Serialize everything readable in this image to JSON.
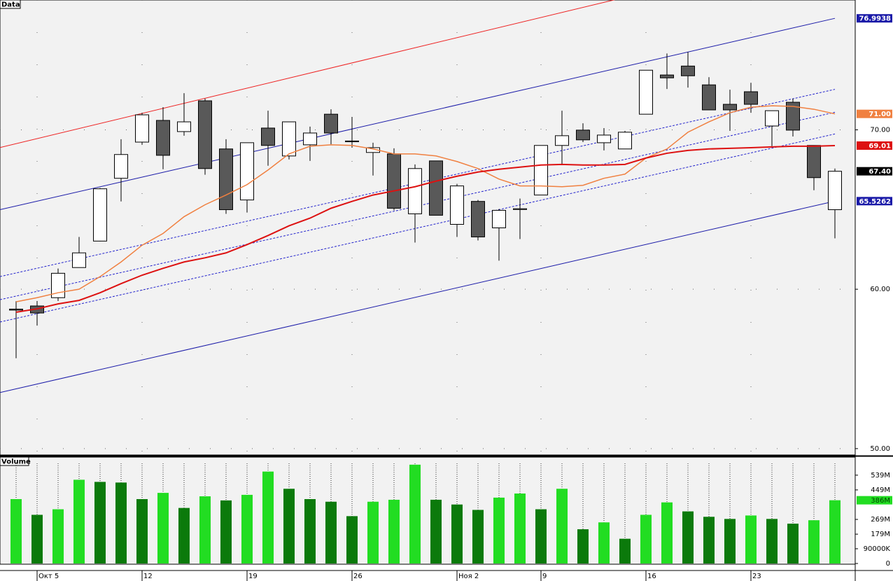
{
  "chart_data": [
    {
      "type": "candlestick",
      "title": "Data",
      "categories": [
        null,
        "Окт 5",
        null,
        null,
        null,
        null,
        "12",
        null,
        null,
        null,
        null,
        "19",
        null,
        null,
        null,
        null,
        "26",
        null,
        null,
        null,
        null,
        "Ноя 2",
        null,
        null,
        null,
        "9",
        null,
        null,
        null,
        null,
        "16",
        null,
        null,
        null,
        null,
        "23",
        null,
        null,
        null,
        null
      ],
      "open": [
        58.75,
        58.95,
        59.47,
        61.36,
        63.02,
        66.96,
        69.23,
        70.59,
        69.89,
        71.82,
        68.8,
        65.6,
        70.11,
        68.36,
        69.06,
        70.98,
        69.3,
        68.58,
        68.49,
        64.73,
        68.05,
        64.07,
        65.51,
        63.85,
        65.0,
        65.91,
        69.02,
        69.98,
        69.19,
        68.8,
        70.98,
        73.44,
        74.0,
        72.82,
        71.6,
        72.39,
        70.24,
        71.73,
        69.02,
        64.99
      ],
      "high": [
        59.25,
        59.26,
        61.3,
        63.28,
        66.35,
        69.41,
        71.07,
        71.42,
        72.3,
        71.95,
        69.41,
        69.19,
        71.2,
        70.5,
        70.2,
        71.29,
        70.81,
        69.19,
        68.84,
        67.83,
        68.05,
        66.61,
        65.6,
        65.03,
        65.69,
        69.02,
        71.2,
        70.41,
        70.11,
        69.93,
        73.74,
        74.79,
        74.88,
        73.3,
        72.52,
        72.95,
        71.2,
        71.95,
        69.02,
        67.57
      ],
      "low": [
        55.67,
        57.72,
        59.26,
        61.36,
        63.0,
        65.51,
        69.06,
        67.53,
        69.63,
        67.18,
        64.73,
        64.81,
        67.75,
        68.14,
        68.05,
        69.1,
        68.88,
        67.13,
        64.95,
        62.93,
        64.64,
        63.28,
        63.06,
        61.79,
        63.15,
        65.91,
        67.79,
        69.23,
        68.71,
        68.8,
        70.98,
        72.56,
        72.65,
        71.25,
        69.93,
        71.07,
        68.97,
        69.58,
        66.21,
        63.19
      ],
      "close": [
        58.69,
        58.51,
        61.0,
        62.28,
        66.3,
        68.45,
        70.94,
        68.4,
        70.5,
        67.57,
        64.99,
        69.19,
        69.02,
        70.5,
        69.8,
        69.8,
        69.25,
        68.88,
        65.08,
        67.57,
        64.64,
        66.48,
        63.28,
        64.95,
        65.05,
        69.02,
        69.63,
        69.37,
        69.67,
        69.85,
        73.74,
        73.26,
        73.39,
        71.25,
        71.25,
        71.6,
        71.2,
        69.98,
        67.0,
        67.4
      ],
      "last_close_label": "67.40",
      "up_color": "#ffffff",
      "down_color": "#595959",
      "series": [
        {
          "color": "#f08040",
          "values": [
            59.21,
            59.47,
            59.78,
            60.0,
            60.79,
            61.71,
            62.76,
            63.5,
            64.55,
            65.3,
            65.91,
            66.56,
            67.48,
            68.49,
            68.97,
            69.06,
            69.02,
            68.8,
            68.49,
            68.49,
            68.36,
            68.01,
            67.57,
            66.91,
            66.48,
            66.48,
            66.43,
            66.52,
            66.96,
            67.22,
            68.23,
            68.8,
            69.85,
            70.5,
            71.07,
            71.42,
            71.51,
            71.47,
            71.29,
            71.0
          ],
          "last_value_label": "71.00"
        },
        {
          "color": "#dd1111",
          "values": [
            58.56,
            58.77,
            59.08,
            59.3,
            59.78,
            60.35,
            60.88,
            61.31,
            61.71,
            61.97,
            62.28,
            62.8,
            63.37,
            63.98,
            64.46,
            65.08,
            65.51,
            65.91,
            66.17,
            66.43,
            66.78,
            67.09,
            67.35,
            67.53,
            67.66,
            67.79,
            67.83,
            67.79,
            67.79,
            67.83,
            68.23,
            68.53,
            68.71,
            68.8,
            68.84,
            68.88,
            68.93,
            68.97,
            68.97,
            69.01
          ],
          "last_value_label": "69.01"
        }
      ],
      "trendlines": [
        {
          "color": "#ee2222",
          "dash": false,
          "labeled": false,
          "values": [
            69.13,
            81.48
          ]
        },
        {
          "color": "#1a1aa8",
          "dash": false,
          "labeled": true,
          "values": [
            65.22,
            76.9938
          ]
        },
        {
          "color": "#1a1aa8",
          "dash": false,
          "labeled": true,
          "values": [
            53.75,
            65.5262
          ]
        },
        {
          "color": "#2222cc",
          "dash": true,
          "labeled": false,
          "values": [
            61.02,
            72.54
          ]
        },
        {
          "color": "#2222cc",
          "dash": true,
          "labeled": false,
          "values": [
            59.57,
            71.1
          ]
        },
        {
          "color": "#2222cc",
          "dash": true,
          "labeled": false,
          "values": [
            58.17,
            69.74
          ]
        }
      ],
      "ylim": [
        49.6,
        78.1
      ],
      "yticks": [
        {
          "value": 50,
          "label": "50.00"
        },
        {
          "value": 60,
          "label": "60.00"
        },
        {
          "value": 70,
          "label": "70.00"
        }
      ],
      "grid": true
    },
    {
      "type": "bar",
      "title": "Volume",
      "values": [
        393,
        297,
        331,
        511,
        498,
        494,
        393,
        431,
        339,
        410,
        385,
        419,
        561,
        456,
        393,
        377,
        289,
        377,
        389,
        603,
        389,
        360,
        327,
        402,
        427,
        331,
        456,
        209,
        251,
        151,
        297,
        373,
        318,
        285,
        272,
        293,
        272,
        243,
        264,
        386
      ],
      "colors": [
        "#22dd22",
        "#0b7a0b",
        "#22dd22",
        "#22dd22",
        "#0b7a0b",
        "#0b7a0b",
        "#0b7a0b",
        "#22dd22",
        "#0b7a0b",
        "#22dd22",
        "#0b7a0b",
        "#22dd22",
        "#22dd22",
        "#0b7a0b",
        "#0b7a0b",
        "#0b7a0b",
        "#0b7a0b",
        "#22dd22",
        "#22dd22",
        "#22dd22",
        "#0b7a0b",
        "#0b7a0b",
        "#0b7a0b",
        "#22dd22",
        "#22dd22",
        "#0b7a0b",
        "#22dd22",
        "#0b7a0b",
        "#22dd22",
        "#0b7a0b",
        "#22dd22",
        "#22dd22",
        "#0b7a0b",
        "#0b7a0b",
        "#0b7a0b",
        "#22dd22",
        "#0b7a0b",
        "#0b7a0b",
        "#22dd22",
        "#22dd22"
      ],
      "last_value_label": "386M",
      "ylim": [
        0,
        645
      ],
      "yticks": [
        {
          "value": 539,
          "label": "539M"
        },
        {
          "value": 449,
          "label": "449M"
        },
        {
          "value": 269,
          "label": "269M"
        },
        {
          "value": 179,
          "label": "179M"
        },
        {
          "value": 90,
          "label": "90000K"
        },
        0
      ]
    }
  ]
}
